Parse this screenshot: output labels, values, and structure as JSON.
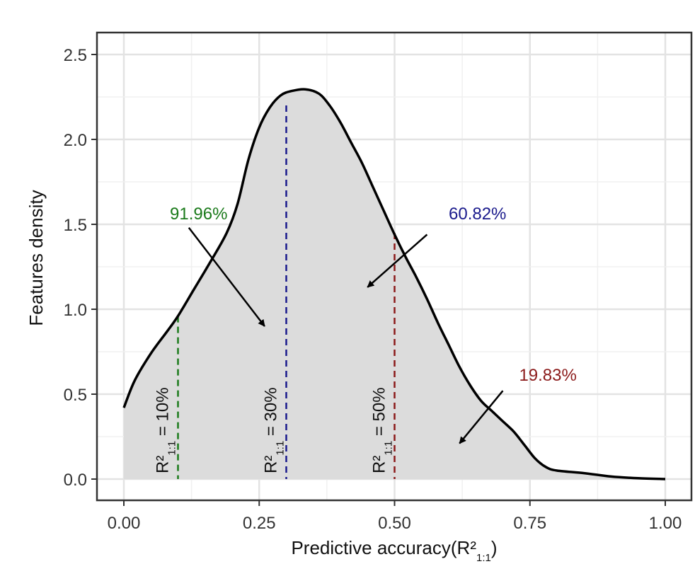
{
  "chart_data": {
    "type": "area",
    "xlabel": "Predictive accuracy(R²",
    "xlabel_sub": "1:1",
    "xlabel_close": ")",
    "ylabel": "Features density",
    "xlim": [
      0.0,
      1.0
    ],
    "ylim": [
      0.0,
      2.5
    ],
    "x_ticks": [
      0.0,
      0.25,
      0.5,
      0.75,
      1.0
    ],
    "x_tick_labels": [
      "0.00",
      "0.25",
      "0.50",
      "0.75",
      "1.00"
    ],
    "y_ticks": [
      0.0,
      0.5,
      1.0,
      1.5,
      2.0,
      2.5
    ],
    "y_tick_labels": [
      "0.0",
      "0.5",
      "1.0",
      "1.5",
      "2.0",
      "2.5"
    ],
    "grid": true,
    "series": [
      {
        "x": [
          0.0,
          0.02,
          0.05,
          0.08,
          0.1,
          0.13,
          0.16,
          0.19,
          0.21,
          0.23,
          0.25,
          0.27,
          0.29,
          0.31,
          0.335,
          0.36,
          0.38,
          0.4,
          0.42,
          0.44,
          0.46,
          0.48,
          0.5,
          0.52,
          0.54,
          0.56,
          0.58,
          0.6,
          0.62,
          0.64,
          0.66,
          0.68,
          0.7,
          0.72,
          0.74,
          0.76,
          0.78,
          0.8,
          0.85,
          0.9,
          0.95,
          1.0
        ],
        "y": [
          0.42,
          0.58,
          0.74,
          0.87,
          0.96,
          1.12,
          1.28,
          1.45,
          1.62,
          1.88,
          2.07,
          2.19,
          2.26,
          2.285,
          2.295,
          2.27,
          2.2,
          2.1,
          1.98,
          1.86,
          1.72,
          1.58,
          1.44,
          1.31,
          1.19,
          1.06,
          0.92,
          0.79,
          0.66,
          0.55,
          0.46,
          0.4,
          0.34,
          0.28,
          0.2,
          0.12,
          0.07,
          0.05,
          0.035,
          0.015,
          0.005,
          0.0
        ]
      }
    ],
    "thresholds": [
      {
        "x": 0.1,
        "y_top": 0.96,
        "color": "#1a7a1a",
        "label_prefix": "R²",
        "label_sub": "1:1",
        "label_suffix": " = 10%"
      },
      {
        "x": 0.3,
        "y_top": 2.2,
        "color": "#1a1a8c",
        "label_prefix": "R²",
        "label_sub": "1:1",
        "label_suffix": " = 30%"
      },
      {
        "x": 0.5,
        "y_top": 1.45,
        "color": "#8b1a1a",
        "label_prefix": "R²",
        "label_sub": "1:1",
        "label_suffix": " = 50%"
      }
    ],
    "annotations": [
      {
        "text": "91.96%",
        "color": "#1a7a1a",
        "text_x": 0.085,
        "text_y": 1.53,
        "arrow_from": [
          0.12,
          1.48
        ],
        "arrow_to": [
          0.26,
          0.9
        ]
      },
      {
        "text": "60.82%",
        "color": "#1a1a8c",
        "text_x": 0.6,
        "text_y": 1.53,
        "arrow_from": [
          0.56,
          1.44
        ],
        "arrow_to": [
          0.45,
          1.13
        ]
      },
      {
        "text": "19.83%",
        "color": "#8b1a1a",
        "text_x": 0.73,
        "text_y": 0.58,
        "arrow_from": [
          0.7,
          0.52
        ],
        "arrow_to": [
          0.62,
          0.21
        ]
      }
    ],
    "fill_color": "#dcdcdc",
    "line_color": "#000000"
  }
}
